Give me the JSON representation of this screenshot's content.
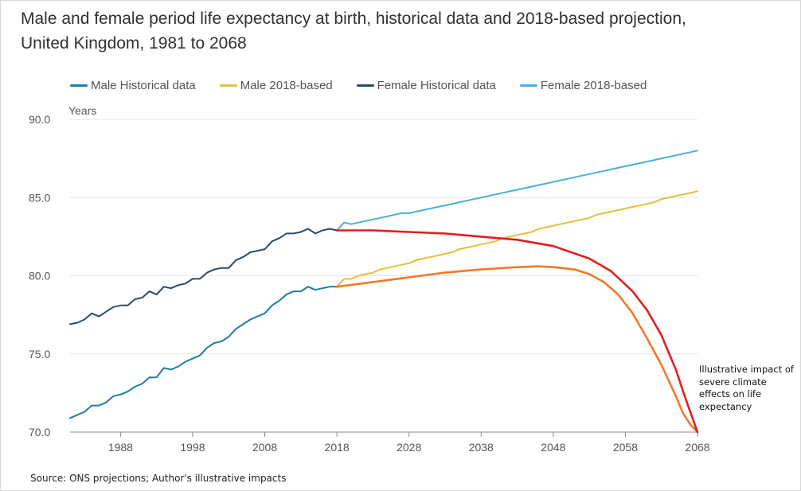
{
  "title": "Male and female period life expectancy at birth, historical data and 2018-based projection, United Kingdom, 1981 to 2068",
  "source": "Source: ONS projections; Author's illustrative impacts",
  "annotation": "Illustrative impact of severe climate effects on life expectancy",
  "chart_data": {
    "type": "line",
    "title": "Male and female period life expectancy at birth, historical data and 2018-based projection, United Kingdom, 1981 to 2068",
    "ylabel": "Years",
    "xlabel": "",
    "xlim": [
      1981,
      2068
    ],
    "ylim": [
      70,
      90
    ],
    "x_ticks": [
      1988,
      1998,
      2008,
      2018,
      2028,
      2038,
      2048,
      2058,
      2068
    ],
    "x_tick_labels": [
      "1988",
      "1998",
      "2008",
      "2018",
      "2028",
      "2038",
      "2048",
      "2058",
      "2068"
    ],
    "y_ticks": [
      70,
      75,
      80,
      85,
      90
    ],
    "y_tick_labels": [
      "70.0",
      "75.0",
      "80.0",
      "85.0",
      "90.0"
    ],
    "grid": "horizontal",
    "legend_position": "top",
    "legend": [
      "Male Historical data",
      "Male 2018-based",
      "Female Historical data",
      "Female 2018-based"
    ],
    "series": [
      {
        "name": "Male Historical data",
        "color": "#1f7fa0",
        "x": [
          1981,
          1982,
          1983,
          1984,
          1985,
          1986,
          1987,
          1988,
          1989,
          1990,
          1991,
          1992,
          1993,
          1994,
          1995,
          1996,
          1997,
          1998,
          1999,
          2000,
          2001,
          2002,
          2003,
          2004,
          2005,
          2006,
          2007,
          2008,
          2009,
          2010,
          2011,
          2012,
          2013,
          2014,
          2015,
          2016,
          2017,
          2018
        ],
        "y": [
          70.9,
          71.1,
          71.3,
          71.7,
          71.7,
          71.9,
          72.3,
          72.4,
          72.6,
          72.9,
          73.1,
          73.5,
          73.5,
          74.1,
          74.0,
          74.2,
          74.5,
          74.7,
          74.9,
          75.4,
          75.7,
          75.8,
          76.1,
          76.6,
          76.9,
          77.2,
          77.4,
          77.6,
          78.1,
          78.4,
          78.8,
          79.0,
          79.0,
          79.3,
          79.1,
          79.2,
          79.3,
          79.3
        ]
      },
      {
        "name": "Male 2018-based",
        "color": "#e6bf3c",
        "x": [
          2018,
          2019,
          2020,
          2021,
          2022,
          2023,
          2024,
          2025,
          2026,
          2027,
          2028,
          2029,
          2030,
          2031,
          2032,
          2033,
          2034,
          2035,
          2036,
          2037,
          2038,
          2039,
          2040,
          2041,
          2042,
          2043,
          2044,
          2045,
          2046,
          2047,
          2048,
          2049,
          2050,
          2051,
          2052,
          2053,
          2054,
          2055,
          2056,
          2057,
          2058,
          2059,
          2060,
          2061,
          2062,
          2063,
          2064,
          2065,
          2066,
          2067,
          2068
        ],
        "y": [
          79.3,
          79.8,
          79.8,
          80.0,
          80.1,
          80.2,
          80.4,
          80.5,
          80.6,
          80.7,
          80.8,
          81.0,
          81.1,
          81.2,
          81.3,
          81.4,
          81.5,
          81.7,
          81.8,
          81.9,
          82.0,
          82.1,
          82.2,
          82.4,
          82.5,
          82.6,
          82.7,
          82.8,
          83.0,
          83.1,
          83.2,
          83.3,
          83.4,
          83.5,
          83.6,
          83.7,
          83.9,
          84.0,
          84.1,
          84.2,
          84.3,
          84.4,
          84.5,
          84.6,
          84.7,
          84.9,
          85.0,
          85.1,
          85.2,
          85.3,
          85.4
        ]
      },
      {
        "name": "Female Historical data",
        "color": "#2e4a6b",
        "x": [
          1981,
          1982,
          1983,
          1984,
          1985,
          1986,
          1987,
          1988,
          1989,
          1990,
          1991,
          1992,
          1993,
          1994,
          1995,
          1996,
          1997,
          1998,
          1999,
          2000,
          2001,
          2002,
          2003,
          2004,
          2005,
          2006,
          2007,
          2008,
          2009,
          2010,
          2011,
          2012,
          2013,
          2014,
          2015,
          2016,
          2017,
          2018
        ],
        "y": [
          76.9,
          77.0,
          77.2,
          77.6,
          77.4,
          77.7,
          78.0,
          78.1,
          78.1,
          78.5,
          78.6,
          79.0,
          78.8,
          79.3,
          79.2,
          79.4,
          79.5,
          79.8,
          79.8,
          80.2,
          80.4,
          80.5,
          80.5,
          81.0,
          81.2,
          81.5,
          81.6,
          81.7,
          82.2,
          82.4,
          82.7,
          82.7,
          82.8,
          83.0,
          82.7,
          82.9,
          83.0,
          82.9
        ]
      },
      {
        "name": "Female 2018-based",
        "color": "#4bb0d8",
        "x": [
          2018,
          2019,
          2020,
          2021,
          2022,
          2023,
          2024,
          2025,
          2026,
          2027,
          2028,
          2029,
          2030,
          2031,
          2032,
          2033,
          2034,
          2035,
          2036,
          2037,
          2038,
          2039,
          2040,
          2041,
          2042,
          2043,
          2044,
          2045,
          2046,
          2047,
          2048,
          2049,
          2050,
          2051,
          2052,
          2053,
          2054,
          2055,
          2056,
          2057,
          2058,
          2059,
          2060,
          2061,
          2062,
          2063,
          2064,
          2065,
          2066,
          2067,
          2068
        ],
        "y": [
          82.9,
          83.4,
          83.3,
          83.4,
          83.5,
          83.6,
          83.7,
          83.8,
          83.9,
          84.0,
          84.0,
          84.1,
          84.2,
          84.3,
          84.4,
          84.5,
          84.6,
          84.7,
          84.8,
          84.9,
          85.0,
          85.1,
          85.2,
          85.3,
          85.4,
          85.5,
          85.6,
          85.7,
          85.8,
          85.9,
          86.0,
          86.1,
          86.2,
          86.3,
          86.4,
          86.5,
          86.6,
          86.7,
          86.8,
          86.9,
          87.0,
          87.1,
          87.2,
          87.3,
          87.4,
          87.5,
          87.6,
          87.7,
          87.8,
          87.9,
          88.0
        ]
      },
      {
        "color": "#e01f1f",
        "x": [
          2018,
          2023,
          2028,
          2033,
          2038,
          2043,
          2048,
          2053,
          2056,
          2059,
          2061,
          2063,
          2065,
          2066,
          2067,
          2068
        ],
        "y": [
          82.9,
          82.9,
          82.8,
          82.7,
          82.5,
          82.3,
          81.9,
          81.1,
          80.3,
          79.0,
          77.8,
          76.2,
          74.0,
          72.6,
          71.3,
          70.0
        ]
      },
      {
        "color": "#f07a2b",
        "x": [
          2018,
          2023,
          2028,
          2033,
          2038,
          2043,
          2046,
          2048,
          2051,
          2053,
          2055,
          2057,
          2059,
          2061,
          2063,
          2065,
          2066,
          2067,
          2068
        ],
        "y": [
          79.3,
          79.6,
          79.9,
          80.2,
          80.4,
          80.55,
          80.6,
          80.55,
          80.4,
          80.1,
          79.6,
          78.8,
          77.6,
          76.0,
          74.3,
          72.3,
          71.2,
          70.5,
          70.0
        ]
      }
    ]
  }
}
